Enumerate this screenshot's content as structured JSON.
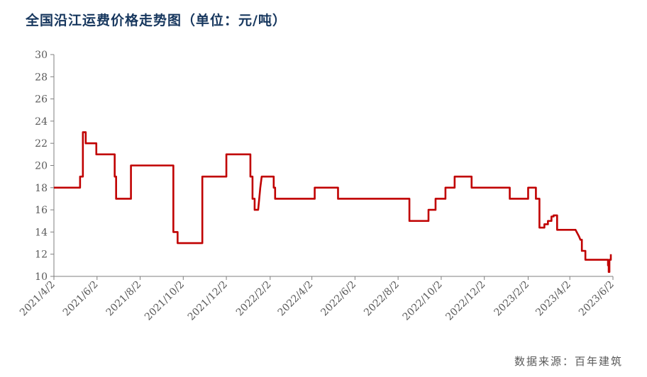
{
  "title": "全国沿江运费价格走势图（单位：元/吨）",
  "source": "数据来源：百年建筑",
  "chart_data": {
    "type": "line",
    "title": "全国沿江运费价格走势图（单位：元/吨）",
    "ylabel": "",
    "xlabel": "",
    "ylim": [
      10,
      30
    ],
    "yticks": [
      "10",
      "12",
      "14",
      "16",
      "18",
      "20",
      "22",
      "24",
      "26",
      "28",
      "30"
    ],
    "xlim": [
      "2021-04-02",
      "2023-06-02"
    ],
    "xticks": [
      "2021/4/2",
      "2021/6/2",
      "2021/8/2",
      "2021/10/2",
      "2021/12/2",
      "2022/2/2",
      "2022/4/2",
      "2022/6/2",
      "2022/8/2",
      "2022/10/2",
      "2022/12/2",
      "2023/2/2",
      "2023/4/2",
      "2023/6/2"
    ],
    "grid": false,
    "line_color": "#c00000",
    "series": [
      {
        "name": "",
        "points": [
          [
            "2021-04-02",
            18.0
          ],
          [
            "2021-05-09",
            18.0
          ],
          [
            "2021-05-09",
            19.0
          ],
          [
            "2021-05-13",
            19.0
          ],
          [
            "2021-05-13",
            23.0
          ],
          [
            "2021-05-17",
            23.0
          ],
          [
            "2021-05-17",
            22.0
          ],
          [
            "2021-06-01",
            22.0
          ],
          [
            "2021-06-01",
            21.0
          ],
          [
            "2021-06-27",
            21.0
          ],
          [
            "2021-06-27",
            19.0
          ],
          [
            "2021-06-29",
            19.0
          ],
          [
            "2021-06-29",
            17.0
          ],
          [
            "2021-07-20",
            17.0
          ],
          [
            "2021-07-20",
            20.0
          ],
          [
            "2021-09-18",
            20.0
          ],
          [
            "2021-09-18",
            14.0
          ],
          [
            "2021-09-24",
            14.0
          ],
          [
            "2021-09-24",
            13.0
          ],
          [
            "2021-10-29",
            13.0
          ],
          [
            "2021-10-29",
            19.0
          ],
          [
            "2021-12-02",
            19.0
          ],
          [
            "2021-12-02",
            21.0
          ],
          [
            "2022-01-05",
            21.0
          ],
          [
            "2022-01-05",
            19.0
          ],
          [
            "2022-01-08",
            19.0
          ],
          [
            "2022-01-08",
            17.0
          ],
          [
            "2022-01-11",
            17.0
          ],
          [
            "2022-01-11",
            16.0
          ],
          [
            "2022-01-16",
            16.0
          ],
          [
            "2022-01-19",
            18.0
          ],
          [
            "2022-01-21",
            19.0
          ],
          [
            "2022-02-07",
            19.0
          ],
          [
            "2022-02-07",
            18.0
          ],
          [
            "2022-02-09",
            18.0
          ],
          [
            "2022-02-09",
            17.0
          ],
          [
            "2022-04-06",
            17.0
          ],
          [
            "2022-04-06",
            18.0
          ],
          [
            "2022-05-09",
            18.0
          ],
          [
            "2022-05-09",
            17.0
          ],
          [
            "2022-08-18",
            17.0
          ],
          [
            "2022-08-18",
            15.0
          ],
          [
            "2022-09-14",
            15.0
          ],
          [
            "2022-09-14",
            16.0
          ],
          [
            "2022-09-24",
            16.0
          ],
          [
            "2022-09-24",
            17.0
          ],
          [
            "2022-10-08",
            17.0
          ],
          [
            "2022-10-08",
            18.0
          ],
          [
            "2022-10-21",
            18.0
          ],
          [
            "2022-10-21",
            19.0
          ],
          [
            "2022-11-14",
            19.0
          ],
          [
            "2022-11-14",
            18.0
          ],
          [
            "2023-01-07",
            18.0
          ],
          [
            "2023-01-07",
            17.0
          ],
          [
            "2023-02-02",
            17.0
          ],
          [
            "2023-02-02",
            18.0
          ],
          [
            "2023-02-13",
            18.0
          ],
          [
            "2023-02-13",
            17.0
          ],
          [
            "2023-02-18",
            17.0
          ],
          [
            "2023-02-18",
            14.4
          ],
          [
            "2023-02-25",
            14.4
          ],
          [
            "2023-02-25",
            14.7
          ],
          [
            "2023-03-02",
            14.7
          ],
          [
            "2023-03-02",
            15.0
          ],
          [
            "2023-03-07",
            15.0
          ],
          [
            "2023-03-07",
            15.4
          ],
          [
            "2023-03-10",
            15.4
          ],
          [
            "2023-03-10",
            15.5
          ],
          [
            "2023-03-15",
            15.5
          ],
          [
            "2023-03-15",
            14.2
          ],
          [
            "2023-04-10",
            14.2
          ],
          [
            "2023-04-15",
            13.6
          ],
          [
            "2023-04-17",
            13.3
          ],
          [
            "2023-04-19",
            13.3
          ],
          [
            "2023-04-19",
            12.3
          ],
          [
            "2023-04-24",
            12.3
          ],
          [
            "2023-04-24",
            11.5
          ],
          [
            "2023-05-26",
            11.5
          ],
          [
            "2023-05-26",
            11.0
          ],
          [
            "2023-05-27",
            11.0
          ],
          [
            "2023-05-27",
            10.4
          ],
          [
            "2023-05-28",
            10.4
          ],
          [
            "2023-05-28",
            11.5
          ],
          [
            "2023-05-30",
            11.5
          ],
          [
            "2023-05-30",
            12.0
          ]
        ]
      }
    ]
  }
}
